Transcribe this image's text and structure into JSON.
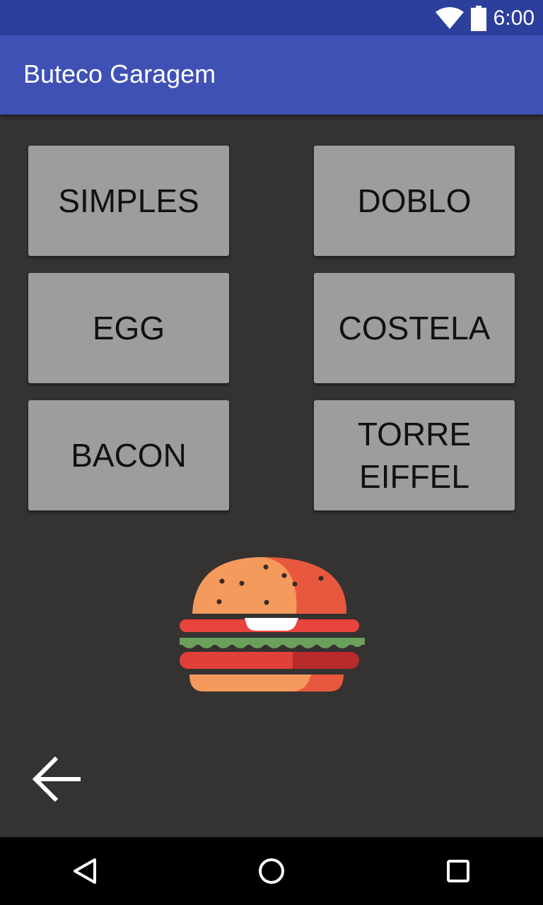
{
  "status_bar": {
    "time": "6:00",
    "icons": [
      "wifi-icon",
      "battery-icon"
    ]
  },
  "app_bar": {
    "title": "Buteco Garagem",
    "color": "#3f51b5"
  },
  "menu": {
    "buttons": [
      {
        "label": "SIMPLES"
      },
      {
        "label": "DOBLO"
      },
      {
        "label": "EGG"
      },
      {
        "label": "COSTELA"
      },
      {
        "label": "BACON"
      },
      {
        "label": "TORRE\nEIFFEL"
      }
    ]
  },
  "images": {
    "logo": "hamburger-icon",
    "back": "arrow-left-icon"
  },
  "navigation": {
    "icons": [
      "back-triangle-icon",
      "home-circle-icon",
      "recents-square-icon"
    ]
  }
}
